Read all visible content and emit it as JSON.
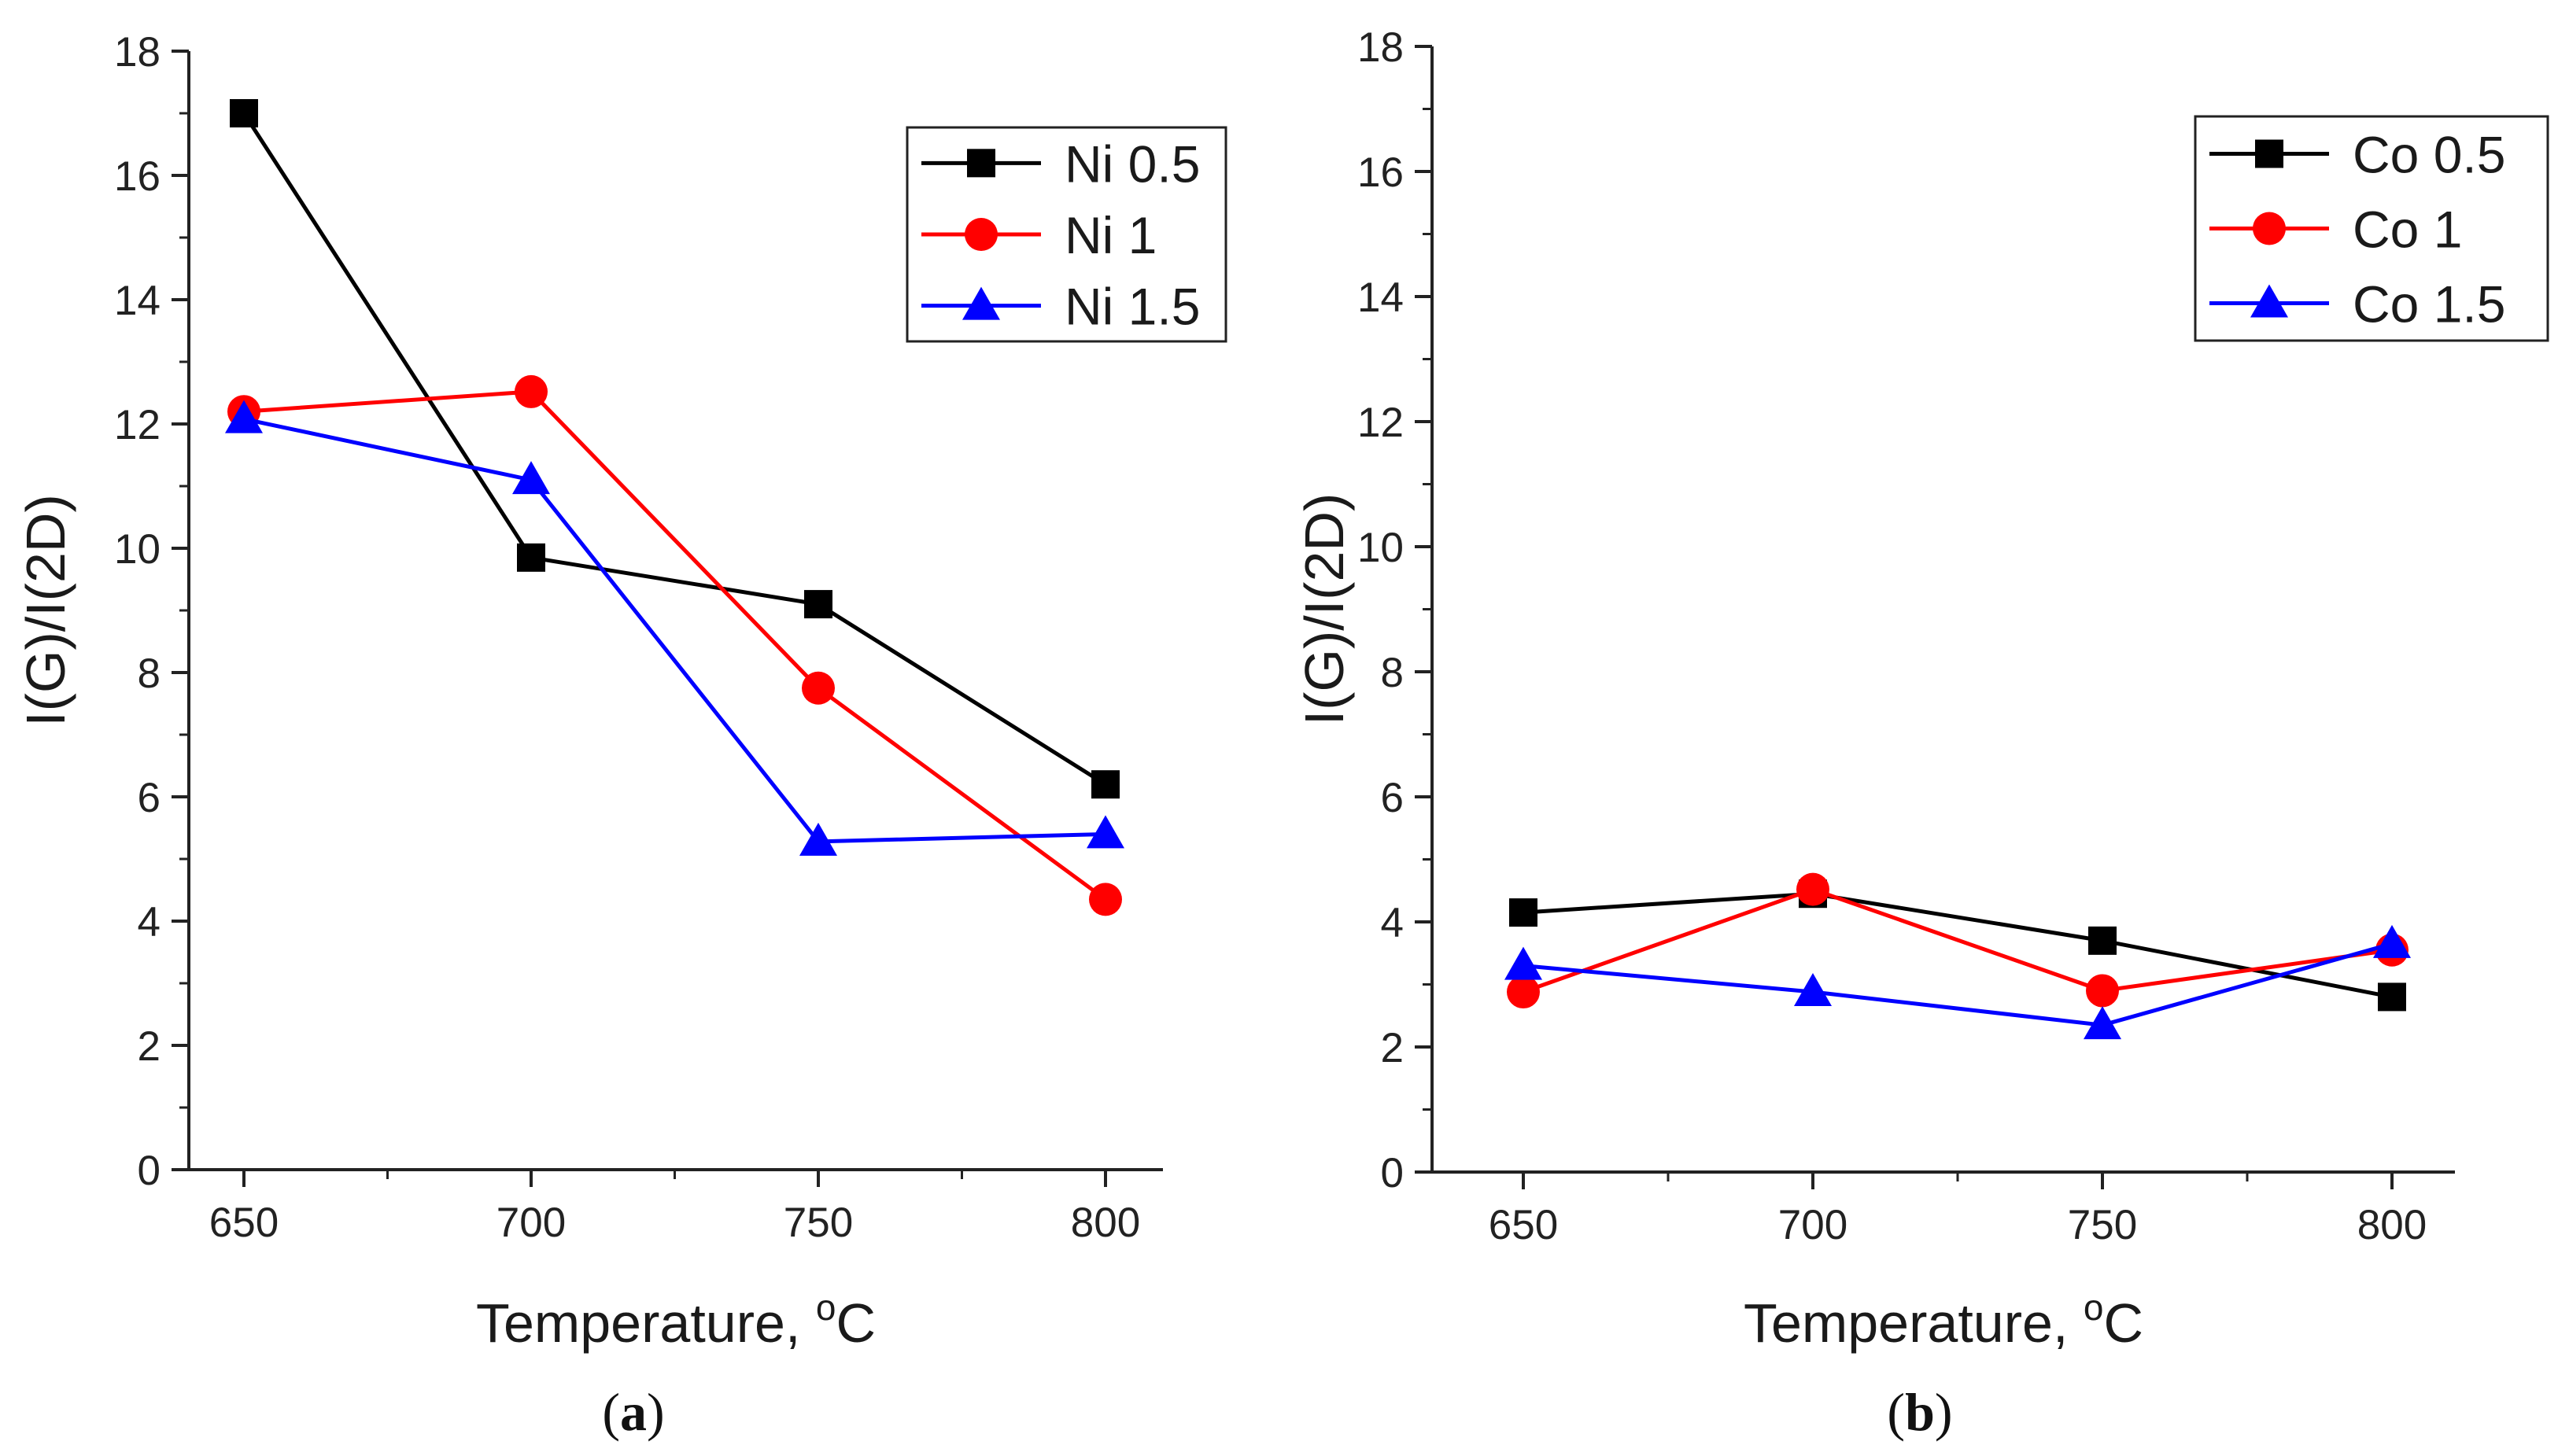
{
  "chart_data": [
    {
      "type": "line",
      "panel_label": "a",
      "xlabel": "Temperature, ",
      "xlabel_superscript": "o",
      "xlabel_suffix": "C",
      "ylabel": "I(G)/I(2D)",
      "x": [
        650,
        700,
        750,
        800
      ],
      "xticks": [
        "650",
        "700",
        "750",
        "800"
      ],
      "yticks": [
        "0",
        "2",
        "4",
        "6",
        "8",
        "10",
        "12",
        "14",
        "16",
        "18"
      ],
      "ylim": [
        0,
        18
      ],
      "legend_position": "top-right",
      "series": [
        {
          "name": "Ni 0.5",
          "marker": "square",
          "color": "#000000",
          "values": [
            17.0,
            9.85,
            9.1,
            6.2
          ]
        },
        {
          "name": "Ni 1",
          "marker": "circle",
          "color": "#ff0000",
          "values": [
            12.2,
            12.52,
            7.75,
            4.35
          ]
        },
        {
          "name": "Ni 1.5",
          "marker": "triangle",
          "color": "#0000ff",
          "values": [
            12.08,
            11.1,
            5.28,
            5.4
          ]
        }
      ]
    },
    {
      "type": "line",
      "panel_label": "b",
      "xlabel": "Temperature, ",
      "xlabel_superscript": "o",
      "xlabel_suffix": "C",
      "ylabel": "I(G)/I(2D)",
      "x": [
        650,
        700,
        750,
        800
      ],
      "xticks": [
        "650",
        "700",
        "750",
        "800"
      ],
      "yticks": [
        "0",
        "2",
        "4",
        "6",
        "8",
        "10",
        "12",
        "14",
        "16",
        "18"
      ],
      "ylim": [
        0,
        18
      ],
      "legend_position": "top-right",
      "series": [
        {
          "name": "Co 0.5",
          "marker": "square",
          "color": "#000000",
          "values": [
            4.15,
            4.45,
            3.7,
            2.8
          ]
        },
        {
          "name": "Co 1",
          "marker": "circle",
          "color": "#ff0000",
          "values": [
            2.88,
            4.52,
            2.9,
            3.55
          ]
        },
        {
          "name": "Co 1.5",
          "marker": "triangle",
          "color": "#0000ff",
          "values": [
            3.3,
            2.88,
            2.35,
            3.65
          ]
        }
      ]
    }
  ]
}
